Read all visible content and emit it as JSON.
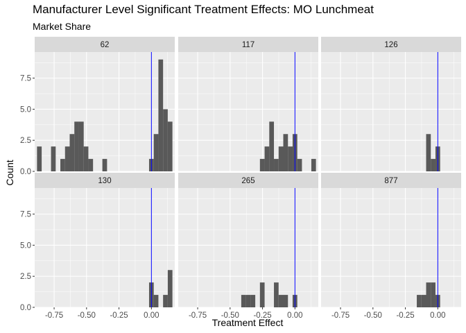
{
  "chart_data": {
    "type": "bar",
    "subtype": "faceted-histogram",
    "title": "Manufacturer Level Significant Treatment Effects: MO Lunchmeat",
    "subtitle": "Market Share",
    "xlabel": "Treatment Effect",
    "ylabel": "Count",
    "xlim": [
      -0.9,
      0.18
    ],
    "ylim": [
      0,
      9.6
    ],
    "xticks": [
      -0.75,
      -0.5,
      -0.25,
      0.0
    ],
    "xtick_labels": [
      "-0.75",
      "-0.50",
      "-0.25",
      "0.00"
    ],
    "yticks": [
      0.0,
      2.5,
      5.0,
      7.5
    ],
    "ytick_labels": [
      "0.0",
      "2.5",
      "5.0",
      "7.5"
    ],
    "bin_width": 0.036,
    "reference_line_x": 0.0,
    "grid": true,
    "colors": {
      "bar": "#595959",
      "vline": "#0000ff",
      "panel_bg": "#ebebeb",
      "strip_bg": "#d9d9d9",
      "grid": "#ffffff"
    },
    "facets": [
      {
        "label": "62",
        "bins": [
          {
            "x": -0.864,
            "count": 2
          },
          {
            "x": -0.756,
            "count": 2
          },
          {
            "x": -0.684,
            "count": 1
          },
          {
            "x": -0.648,
            "count": 2
          },
          {
            "x": -0.612,
            "count": 3
          },
          {
            "x": -0.576,
            "count": 4
          },
          {
            "x": -0.54,
            "count": 4
          },
          {
            "x": -0.504,
            "count": 2
          },
          {
            "x": -0.468,
            "count": 1
          },
          {
            "x": -0.36,
            "count": 1
          },
          {
            "x": 0.0,
            "count": 1
          },
          {
            "x": 0.036,
            "count": 3
          },
          {
            "x": 0.072,
            "count": 9
          },
          {
            "x": 0.108,
            "count": 5
          },
          {
            "x": 0.144,
            "count": 4
          }
        ]
      },
      {
        "label": "117",
        "bins": [
          {
            "x": -0.252,
            "count": 1
          },
          {
            "x": -0.216,
            "count": 2
          },
          {
            "x": -0.18,
            "count": 4
          },
          {
            "x": -0.144,
            "count": 1
          },
          {
            "x": -0.108,
            "count": 2
          },
          {
            "x": -0.072,
            "count": 3
          },
          {
            "x": -0.036,
            "count": 2
          },
          {
            "x": 0.0,
            "count": 3
          },
          {
            "x": 0.036,
            "count": 1
          },
          {
            "x": 0.144,
            "count": 1
          }
        ]
      },
      {
        "label": "126",
        "bins": [
          {
            "x": -0.072,
            "count": 3
          },
          {
            "x": -0.036,
            "count": 1
          },
          {
            "x": 0.0,
            "count": 2
          }
        ]
      },
      {
        "label": "130",
        "bins": [
          {
            "x": 0.0,
            "count": 2
          },
          {
            "x": 0.036,
            "count": 1
          },
          {
            "x": 0.108,
            "count": 1
          },
          {
            "x": 0.144,
            "count": 3
          }
        ]
      },
      {
        "label": "265",
        "bins": [
          {
            "x": -0.396,
            "count": 1
          },
          {
            "x": -0.36,
            "count": 1
          },
          {
            "x": -0.324,
            "count": 1
          },
          {
            "x": -0.252,
            "count": 2
          },
          {
            "x": -0.144,
            "count": 2
          },
          {
            "x": -0.108,
            "count": 1
          },
          {
            "x": -0.072,
            "count": 1
          },
          {
            "x": 0.0,
            "count": 1
          }
        ]
      },
      {
        "label": "877",
        "bins": [
          {
            "x": -0.144,
            "count": 1
          },
          {
            "x": -0.108,
            "count": 1
          },
          {
            "x": -0.072,
            "count": 2
          },
          {
            "x": -0.036,
            "count": 2
          },
          {
            "x": 0.0,
            "count": 1
          }
        ]
      }
    ]
  }
}
